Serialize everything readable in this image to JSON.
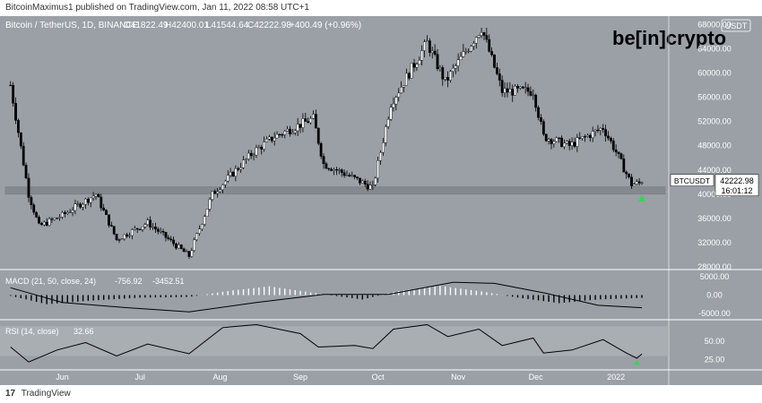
{
  "header": {
    "publish_line": "BitcoinMaximus1 published on TradingView.com, Jan 11, 2022 08:58 UTC+1"
  },
  "footer": {
    "logo_glyph": "17",
    "brand": "TradingView"
  },
  "watermark": {
    "text": "be[in]crypto"
  },
  "colors": {
    "panel_bg": "#9aa0a6",
    "candle_up": "#ffffff",
    "candle_down": "#000000",
    "macd_line": "#000000",
    "rsi_line": "#000000",
    "support_band": "#7e848a",
    "signal_arrow": "#39d353"
  },
  "chart_data": {
    "type": "candlestick",
    "symbol_line": "Bitcoin / TetherUS, 1D, BINANCE",
    "ohlc_label_o": "O41822.49",
    "ohlc_label_h": "H42400.01",
    "ohlc_label_l": "L41544.64",
    "ohlc_label_c": "C42222.98",
    "change_label": "+400.49 (+0.96%)",
    "currency_label": "USDT",
    "price_tag": {
      "symbol": "BTCUSDT",
      "price": "42222.98",
      "countdown": "16:01:12"
    },
    "y_ticks": [
      "68000.00",
      "64000.00",
      "60000.00",
      "56000.00",
      "52000.00",
      "48000.00",
      "44000.00",
      "40000.00",
      "36000.00",
      "32000.00",
      "28000.00"
    ],
    "ylim": [
      28000,
      68800
    ],
    "x_ticks": [
      "Jun",
      "Jul",
      "Aug",
      "Sep",
      "Oct",
      "Nov",
      "Dec",
      "2022"
    ],
    "support_zone": [
      40000,
      41200
    ],
    "series": [
      {
        "name": "BTCUSDT",
        "key_points": [
          {
            "date": "2021-05-12",
            "close": 58000
          },
          {
            "date": "2021-05-19",
            "close": 40000
          },
          {
            "date": "2021-05-23",
            "close": 34700
          },
          {
            "date": "2021-06-01",
            "close": 36500
          },
          {
            "date": "2021-06-14",
            "close": 40000
          },
          {
            "date": "2021-06-22",
            "close": 32500
          },
          {
            "date": "2021-07-04",
            "close": 35300
          },
          {
            "date": "2021-07-20",
            "close": 29800
          },
          {
            "date": "2021-07-29",
            "close": 40000
          },
          {
            "date": "2021-08-14",
            "close": 47000
          },
          {
            "date": "2021-08-22",
            "close": 49500
          },
          {
            "date": "2021-09-06",
            "close": 52500
          },
          {
            "date": "2021-09-10",
            "close": 45000
          },
          {
            "date": "2021-09-20",
            "close": 43000
          },
          {
            "date": "2021-09-29",
            "close": 41000
          },
          {
            "date": "2021-10-06",
            "close": 55000
          },
          {
            "date": "2021-10-20",
            "close": 65000
          },
          {
            "date": "2021-10-27",
            "close": 58500
          },
          {
            "date": "2021-11-10",
            "close": 67500
          },
          {
            "date": "2021-11-18",
            "close": 57000
          },
          {
            "date": "2021-11-30",
            "close": 57000
          },
          {
            "date": "2021-12-04",
            "close": 49500
          },
          {
            "date": "2021-12-14",
            "close": 48000
          },
          {
            "date": "2021-12-27",
            "close": 51000
          },
          {
            "date": "2022-01-01",
            "close": 47000
          },
          {
            "date": "2022-01-07",
            "close": 41600
          },
          {
            "date": "2022-01-10",
            "close": 41800
          },
          {
            "date": "2022-01-11",
            "close": 42222.98
          }
        ]
      }
    ],
    "macd": {
      "label": "MACD (21, 50, close, 24)",
      "value1": "-756.92",
      "value2": "-3452.51",
      "y_ticks": [
        "5000.00",
        "0.00",
        "-5000.00"
      ],
      "ylim": [
        -6000,
        6000
      ],
      "histogram_points": [
        {
          "date": "2021-05-12",
          "value": -200
        },
        {
          "date": "2021-05-26",
          "value": -2500
        },
        {
          "date": "2021-06-10",
          "value": -1600
        },
        {
          "date": "2021-07-01",
          "value": -700
        },
        {
          "date": "2021-07-20",
          "value": -500
        },
        {
          "date": "2021-08-05",
          "value": 1200
        },
        {
          "date": "2021-08-20",
          "value": 2400
        },
        {
          "date": "2021-09-10",
          "value": 200
        },
        {
          "date": "2021-09-25",
          "value": -1200
        },
        {
          "date": "2021-10-08",
          "value": 1000
        },
        {
          "date": "2021-10-25",
          "value": 2500
        },
        {
          "date": "2021-11-10",
          "value": 1000
        },
        {
          "date": "2021-11-25",
          "value": -800
        },
        {
          "date": "2021-12-10",
          "value": -2200
        },
        {
          "date": "2021-12-25",
          "value": -1200
        },
        {
          "date": "2022-01-11",
          "value": -756.92
        }
      ],
      "signal_points": [
        {
          "date": "2021-05-12",
          "value": 2000
        },
        {
          "date": "2021-06-01",
          "value": -2000
        },
        {
          "date": "2021-06-25",
          "value": -3400
        },
        {
          "date": "2021-07-20",
          "value": -4600
        },
        {
          "date": "2021-08-15",
          "value": -2000
        },
        {
          "date": "2021-09-10",
          "value": 200
        },
        {
          "date": "2021-10-05",
          "value": 200
        },
        {
          "date": "2021-10-30",
          "value": 3500
        },
        {
          "date": "2021-11-15",
          "value": 3200
        },
        {
          "date": "2021-12-05",
          "value": 500
        },
        {
          "date": "2021-12-25",
          "value": -2800
        },
        {
          "date": "2022-01-11",
          "value": -3452.51
        }
      ]
    },
    "rsi": {
      "label": "RSI (14, close)",
      "value": "32.66",
      "y_ticks": [
        "50.00",
        "25.00"
      ],
      "band_upper": 70,
      "band_lower": 30,
      "ylim": [
        15,
        75
      ],
      "points": [
        {
          "date": "2021-05-12",
          "value": 42
        },
        {
          "date": "2021-05-19",
          "value": 22
        },
        {
          "date": "2021-05-30",
          "value": 38
        },
        {
          "date": "2021-06-10",
          "value": 48
        },
        {
          "date": "2021-06-22",
          "value": 30
        },
        {
          "date": "2021-07-04",
          "value": 46
        },
        {
          "date": "2021-07-20",
          "value": 33
        },
        {
          "date": "2021-08-02",
          "value": 68
        },
        {
          "date": "2021-08-15",
          "value": 72
        },
        {
          "date": "2021-09-01",
          "value": 60
        },
        {
          "date": "2021-09-08",
          "value": 42
        },
        {
          "date": "2021-09-22",
          "value": 44
        },
        {
          "date": "2021-09-29",
          "value": 40
        },
        {
          "date": "2021-10-07",
          "value": 66
        },
        {
          "date": "2021-10-20",
          "value": 72
        },
        {
          "date": "2021-10-28",
          "value": 56
        },
        {
          "date": "2021-11-09",
          "value": 66
        },
        {
          "date": "2021-11-18",
          "value": 44
        },
        {
          "date": "2021-11-30",
          "value": 54
        },
        {
          "date": "2021-12-04",
          "value": 34
        },
        {
          "date": "2021-12-15",
          "value": 38
        },
        {
          "date": "2021-12-27",
          "value": 52
        },
        {
          "date": "2022-01-05",
          "value": 34
        },
        {
          "date": "2022-01-09",
          "value": 27
        },
        {
          "date": "2022-01-11",
          "value": 32.66
        }
      ]
    }
  }
}
